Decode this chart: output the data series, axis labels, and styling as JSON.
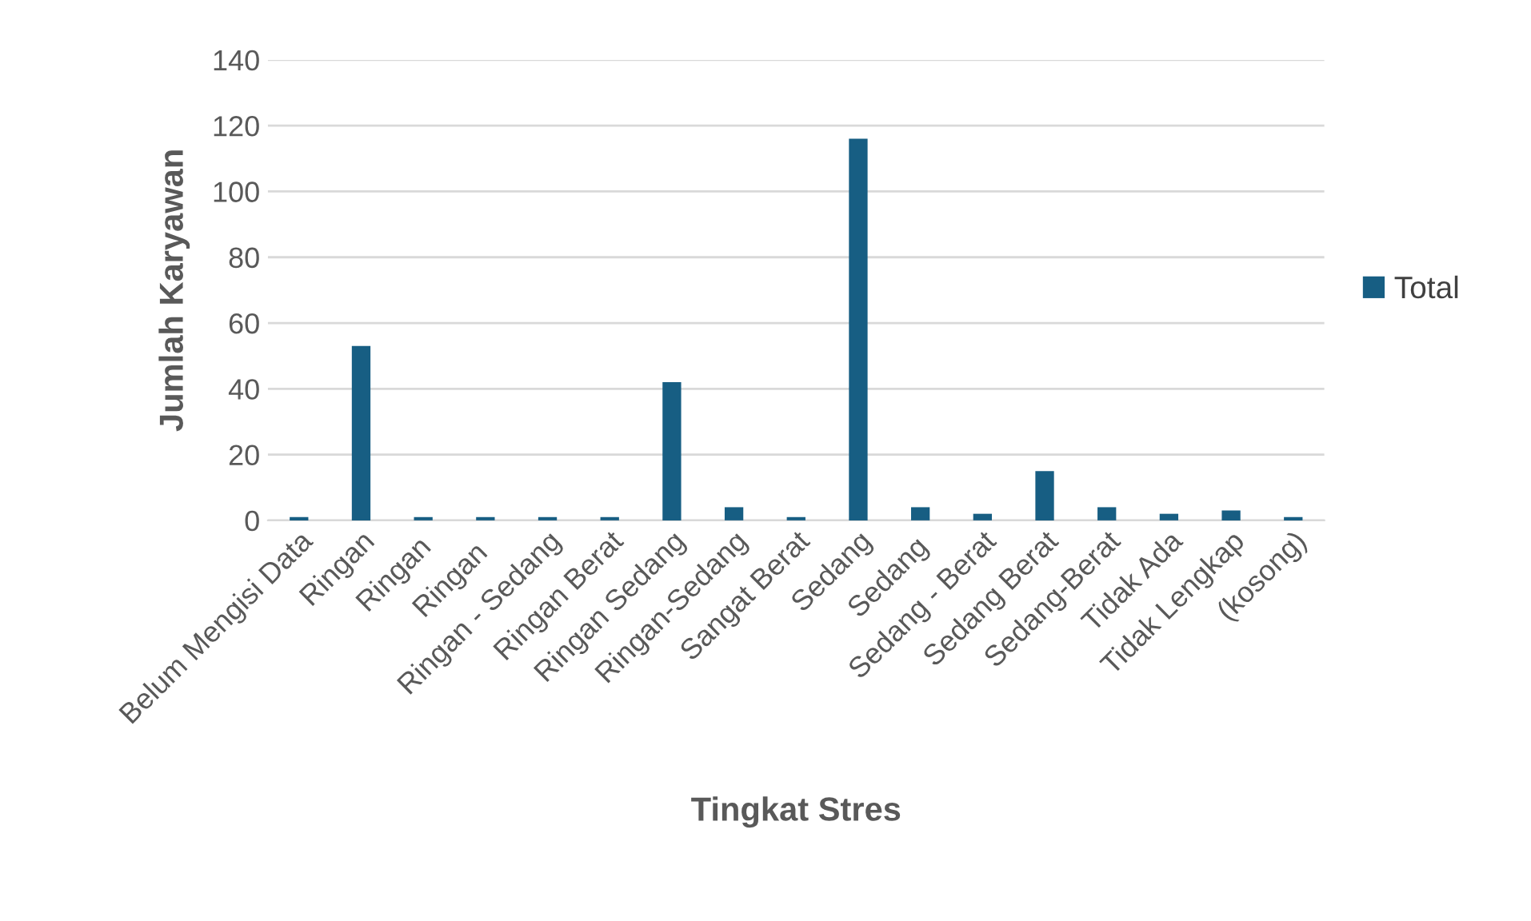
{
  "chart_data": {
    "type": "bar",
    "categories": [
      "Belum Mengisi Data",
      "Ringan",
      "Ringan ",
      "Ringan  ",
      "Ringan - Sedang",
      "Ringan Berat",
      "Ringan Sedang",
      "Ringan-Sedang",
      "Sangat Berat",
      "Sedang",
      "Sedang ",
      "Sedang - Berat",
      "Sedang Berat",
      "Sedang-Berat",
      "Tidak Ada",
      "Tidak Lengkap",
      "(kosong)"
    ],
    "series": [
      {
        "name": "Total",
        "color": "#175e83",
        "values": [
          1,
          53,
          1,
          1,
          1,
          1,
          42,
          4,
          1,
          116,
          4,
          2,
          15,
          4,
          2,
          3,
          1
        ]
      }
    ],
    "xlabel": "Tingkat Stres",
    "ylabel": "Jumlah Karyawan",
    "ylim": [
      0,
      140
    ],
    "yticks": [
      0,
      20,
      40,
      60,
      80,
      100,
      120,
      140
    ],
    "grid": "y",
    "legend": "right"
  }
}
